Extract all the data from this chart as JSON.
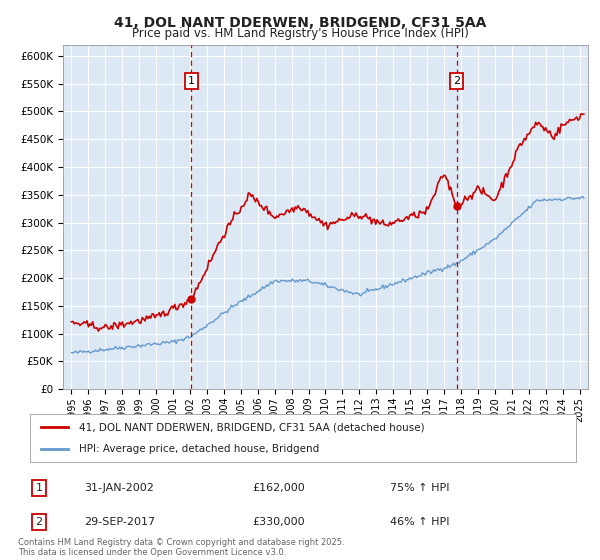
{
  "title": "41, DOL NANT DDERWEN, BRIDGEND, CF31 5AA",
  "subtitle": "Price paid vs. HM Land Registry's House Price Index (HPI)",
  "legend_line1": "41, DOL NANT DDERWEN, BRIDGEND, CF31 5AA (detached house)",
  "legend_line2": "HPI: Average price, detached house, Bridgend",
  "annotation1_date": "31-JAN-2002",
  "annotation1_price": "£162,000",
  "annotation1_hpi": "75% ↑ HPI",
  "annotation2_date": "29-SEP-2017",
  "annotation2_price": "£330,000",
  "annotation2_hpi": "46% ↑ HPI",
  "vline1_x": 2002.08,
  "vline2_x": 2017.75,
  "marker1_red_y": 162000,
  "marker2_red_y": 330000,
  "ylim": [
    0,
    620000
  ],
  "xlim": [
    1994.5,
    2025.5
  ],
  "footer": "Contains HM Land Registry data © Crown copyright and database right 2025.\nThis data is licensed under the Open Government Licence v3.0.",
  "bg_color": "#dce9f5",
  "grid_color": "#ffffff",
  "red_color": "#cc0000",
  "blue_color": "#6699cc",
  "fig_bg": "#ffffff"
}
